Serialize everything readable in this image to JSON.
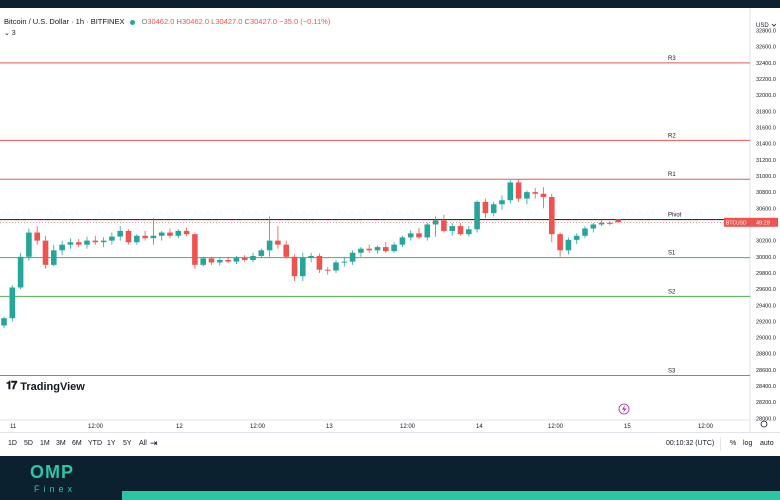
{
  "header": {
    "symbol": "Bitcoin / U.S. Dollar · 1h · BITFINEX",
    "o_label": "O",
    "o_value": "30462.0",
    "h_label": "H",
    "h_value": "30462.0",
    "l_label": "L",
    "l_value": "30427.0",
    "c_label": "C",
    "c_value": "30427.0",
    "change": "−35.0 (−0.11%)",
    "legend_toggle": "⌄ 3"
  },
  "currency": "USD",
  "logo": "TradingView",
  "price_axis": {
    "ticks": [
      "32800.0",
      "32600.0",
      "32400.0",
      "32200.0",
      "32000.0",
      "31800.0",
      "31600.0",
      "31400.0",
      "31200.0",
      "31000.0",
      "30800.0",
      "30600.0",
      "30400.0",
      "30200.0",
      "30000.0",
      "29800.0",
      "29600.0",
      "29400.0",
      "29200.0",
      "29000.0",
      "28800.0",
      "28600.0",
      "28400.0",
      "28200.0",
      "28000.0"
    ],
    "current_tag_symbol": "BTCUSD",
    "current_tag_time": "49:28"
  },
  "time_axis": {
    "ticks": [
      "11",
      "12:00",
      "12",
      "12:00",
      "13",
      "12:00",
      "14",
      "12:00",
      "15",
      "12:00"
    ]
  },
  "levels": [
    {
      "label": "R3",
      "price": 32400,
      "color": "#ef5350"
    },
    {
      "label": "R2",
      "price": 31440,
      "color": "#ef5350"
    },
    {
      "label": "R1",
      "price": 30960,
      "color": "#ef5350"
    },
    {
      "label": "Pivot",
      "price": 30460,
      "color": "#131722"
    },
    {
      "label": "S1",
      "price": 29990,
      "color": "#4caf50"
    },
    {
      "label": "S2",
      "price": 29510,
      "color": "#4caf50"
    },
    {
      "label": "S3",
      "price": 28530,
      "color": "#4caf50"
    }
  ],
  "chart_data": {
    "type": "candlestick",
    "ylim": [
      27980,
      32980
    ],
    "candles": [
      [
        29150,
        29260,
        29120,
        29240
      ],
      [
        29240,
        29650,
        29200,
        29620
      ],
      [
        29620,
        30050,
        29600,
        30000
      ],
      [
        30000,
        30350,
        29950,
        30300
      ],
      [
        30300,
        30380,
        30150,
        30200
      ],
      [
        30200,
        30260,
        29850,
        29900
      ],
      [
        29900,
        30150,
        29880,
        30080
      ],
      [
        30080,
        30200,
        30020,
        30150
      ],
      [
        30150,
        30230,
        30100,
        30180
      ],
      [
        30180,
        30220,
        30120,
        30150
      ],
      [
        30150,
        30250,
        30100,
        30200
      ],
      [
        30200,
        30260,
        30150,
        30180
      ],
      [
        30180,
        30240,
        30120,
        30200
      ],
      [
        30200,
        30300,
        30150,
        30250
      ],
      [
        30250,
        30380,
        30200,
        30320
      ],
      [
        30320,
        30340,
        30150,
        30180
      ],
      [
        30180,
        30280,
        30150,
        30260
      ],
      [
        30260,
        30320,
        30200,
        30230
      ],
      [
        30230,
        30480,
        30150,
        30260
      ],
      [
        30260,
        30320,
        30200,
        30300
      ],
      [
        30300,
        30350,
        30230,
        30260
      ],
      [
        30260,
        30340,
        30230,
        30320
      ],
      [
        30320,
        30360,
        30260,
        30280
      ],
      [
        30280,
        30300,
        29850,
        29900
      ],
      [
        29900,
        30000,
        29880,
        29980
      ],
      [
        29980,
        30000,
        29900,
        29930
      ],
      [
        29930,
        29990,
        29890,
        29960
      ],
      [
        29960,
        30000,
        29920,
        29940
      ],
      [
        29940,
        30010,
        29910,
        29990
      ],
      [
        29990,
        30020,
        29940,
        29960
      ],
      [
        29960,
        30050,
        29930,
        30010
      ],
      [
        30010,
        30100,
        29990,
        30080
      ],
      [
        30080,
        30500,
        30000,
        30200
      ],
      [
        30200,
        30380,
        30100,
        30150
      ],
      [
        30150,
        30200,
        29980,
        30000
      ],
      [
        30000,
        30030,
        29700,
        29760
      ],
      [
        29760,
        30050,
        29700,
        29990
      ],
      [
        29990,
        30050,
        29930,
        30010
      ],
      [
        30010,
        30040,
        29800,
        29840
      ],
      [
        29840,
        29870,
        29780,
        29830
      ],
      [
        29830,
        29960,
        29800,
        29930
      ],
      [
        29930,
        30000,
        29880,
        29940
      ],
      [
        29940,
        30080,
        29900,
        30050
      ],
      [
        30050,
        30120,
        30000,
        30100
      ],
      [
        30100,
        30150,
        30050,
        30080
      ],
      [
        30080,
        30140,
        30040,
        30120
      ],
      [
        30120,
        30180,
        30050,
        30070
      ],
      [
        30070,
        30180,
        30050,
        30150
      ],
      [
        30150,
        30260,
        30120,
        30240
      ],
      [
        30240,
        30330,
        30200,
        30290
      ],
      [
        30290,
        30360,
        30220,
        30240
      ],
      [
        30240,
        30420,
        30200,
        30400
      ],
      [
        30400,
        30500,
        30250,
        30450
      ],
      [
        30450,
        30520,
        30300,
        30320
      ],
      [
        30320,
        30420,
        30260,
        30380
      ],
      [
        30380,
        30420,
        30260,
        30280
      ],
      [
        30280,
        30380,
        30250,
        30340
      ],
      [
        30340,
        30700,
        30300,
        30680
      ],
      [
        30680,
        30720,
        30480,
        30540
      ],
      [
        30540,
        30680,
        30500,
        30650
      ],
      [
        30650,
        30760,
        30580,
        30700
      ],
      [
        30700,
        30950,
        30660,
        30920
      ],
      [
        30920,
        30960,
        30680,
        30720
      ],
      [
        30720,
        30820,
        30650,
        30800
      ],
      [
        30800,
        30850,
        30720,
        30780
      ],
      [
        30780,
        30860,
        30600,
        30740
      ],
      [
        30740,
        30780,
        30180,
        30280
      ],
      [
        30280,
        30300,
        30000,
        30080
      ],
      [
        30080,
        30240,
        30030,
        30210
      ],
      [
        30210,
        30290,
        30160,
        30260
      ],
      [
        30260,
        30380,
        30230,
        30350
      ],
      [
        30350,
        30420,
        30300,
        30400
      ],
      [
        30400,
        30450,
        30380,
        30420
      ],
      [
        30420,
        30440,
        30390,
        30410
      ],
      [
        30462,
        30462,
        30427,
        30427
      ]
    ]
  },
  "toolbar": {
    "timeframes": [
      "1D",
      "5D",
      "1M",
      "3M",
      "6M",
      "YTD",
      "1Y",
      "5Y",
      "All"
    ],
    "clock": "00:10:32 (UTC)",
    "percent": "%",
    "log": "log",
    "auto": "auto"
  },
  "footer": {
    "brand": "OMP",
    "sub": "Finex"
  }
}
